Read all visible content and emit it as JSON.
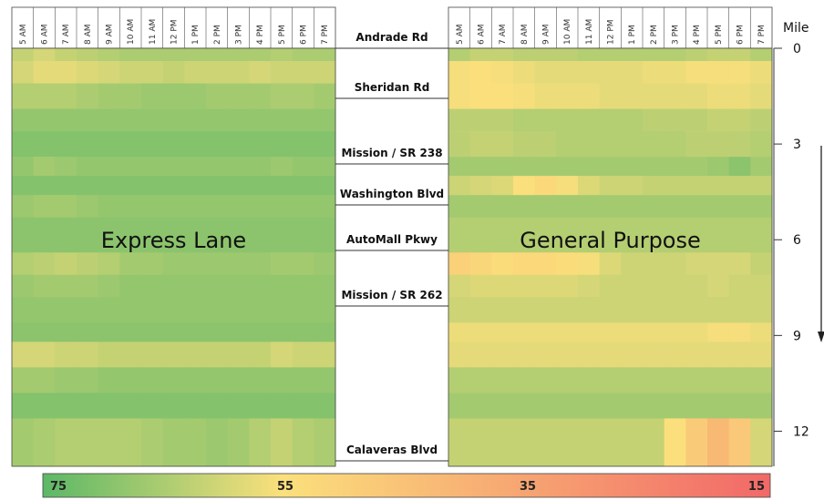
{
  "chart_data": {
    "type": "heatmap",
    "title": "",
    "time_labels": [
      "5 AM",
      "6 AM",
      "7 AM",
      "8 AM",
      "9 AM",
      "10 AM",
      "11 AM",
      "12 PM",
      "1 PM",
      "2 PM",
      "3 PM",
      "4 PM",
      "5 PM",
      "6 PM",
      "7 PM"
    ],
    "panels": [
      {
        "name": "Express Lane",
        "rows": [
          {
            "seg": [
              0.0,
              0.4
            ],
            "values": [
              62,
              60,
              62,
              63,
              64,
              65,
              65,
              65,
              65,
              65,
              65,
              65,
              64,
              65,
              65
            ]
          },
          {
            "seg": [
              0.4,
              1.1
            ],
            "values": [
              60,
              58,
              58,
              59,
              60,
              61,
              61,
              62,
              61,
              61,
              61,
              60,
              61,
              61,
              61
            ]
          },
          {
            "seg": [
              1.1,
              1.9
            ],
            "values": [
              64,
              64,
              64,
              65,
              66,
              66,
              67,
              67,
              67,
              66,
              66,
              66,
              65,
              65,
              66
            ]
          },
          {
            "seg": [
              1.9,
              2.6
            ],
            "values": [
              68,
              68,
              68,
              68,
              68,
              68,
              68,
              68,
              68,
              68,
              68,
              68,
              68,
              68,
              68
            ]
          },
          {
            "seg": [
              2.6,
              3.4
            ],
            "values": [
              70,
              70,
              70,
              70,
              70,
              70,
              70,
              70,
              70,
              70,
              70,
              70,
              70,
              70,
              70
            ]
          },
          {
            "seg": [
              3.4,
              4.0
            ],
            "values": [
              68,
              66,
              67,
              68,
              68,
              68,
              68,
              68,
              68,
              68,
              68,
              68,
              67,
              68,
              68
            ]
          },
          {
            "seg": [
              4.0,
              4.6
            ],
            "values": [
              70,
              70,
              70,
              70,
              70,
              70,
              70,
              70,
              70,
              70,
              70,
              70,
              70,
              70,
              70
            ]
          },
          {
            "seg": [
              4.6,
              5.3
            ],
            "values": [
              67,
              66,
              66,
              67,
              68,
              68,
              68,
              68,
              68,
              68,
              68,
              68,
              68,
              68,
              68
            ]
          },
          {
            "seg": [
              5.3,
              6.4
            ],
            "values": [
              69,
              69,
              69,
              69,
              69,
              69,
              69,
              69,
              69,
              69,
              69,
              69,
              69,
              69,
              69
            ]
          },
          {
            "seg": [
              6.4,
              7.1
            ],
            "values": [
              64,
              63,
              62,
              63,
              64,
              66,
              66,
              67,
              67,
              67,
              67,
              67,
              66,
              66,
              67
            ]
          },
          {
            "seg": [
              7.1,
              7.8
            ],
            "values": [
              67,
              66,
              66,
              66,
              67,
              68,
              68,
              68,
              68,
              68,
              68,
              68,
              68,
              68,
              68
            ]
          },
          {
            "seg": [
              7.8,
              8.6
            ],
            "values": [
              68,
              68,
              68,
              68,
              68,
              68,
              68,
              68,
              68,
              68,
              68,
              68,
              68,
              68,
              68
            ]
          },
          {
            "seg": [
              8.6,
              9.2
            ],
            "values": [
              69,
              69,
              69,
              69,
              69,
              69,
              69,
              69,
              69,
              69,
              69,
              69,
              69,
              69,
              69
            ]
          },
          {
            "seg": [
              9.2,
              10.0
            ],
            "values": [
              60,
              60,
              61,
              61,
              62,
              62,
              62,
              62,
              62,
              62,
              62,
              62,
              60,
              61,
              61
            ]
          },
          {
            "seg": [
              10.0,
              10.8
            ],
            "values": [
              66,
              66,
              67,
              67,
              68,
              68,
              68,
              68,
              68,
              68,
              68,
              68,
              68,
              68,
              68
            ]
          },
          {
            "seg": [
              10.8,
              11.6
            ],
            "values": [
              70,
              70,
              70,
              70,
              70,
              70,
              70,
              70,
              70,
              70,
              70,
              70,
              70,
              70,
              70
            ]
          },
          {
            "seg": [
              11.6,
              13.1
            ],
            "values": [
              66,
              65,
              64,
              64,
              64,
              64,
              65,
              66,
              66,
              67,
              66,
              64,
              62,
              64,
              65
            ]
          }
        ]
      },
      {
        "name": "General Purpose",
        "rows": [
          {
            "seg": [
              0.0,
              0.4
            ],
            "values": [
              64,
              62,
              62,
              63,
              63,
              63,
              64,
              64,
              64,
              64,
              64,
              63,
              62,
              62,
              64
            ]
          },
          {
            "seg": [
              0.4,
              1.1
            ],
            "values": [
              56,
              55,
              56,
              57,
              58,
              58,
              58,
              58,
              58,
              57,
              57,
              56,
              56,
              56,
              57
            ]
          },
          {
            "seg": [
              1.1,
              1.9
            ],
            "values": [
              56,
              55,
              55,
              56,
              57,
              57,
              57,
              58,
              58,
              58,
              58,
              58,
              57,
              57,
              58
            ]
          },
          {
            "seg": [
              1.9,
              2.6
            ],
            "values": [
              63,
              63,
              63,
              64,
              64,
              64,
              64,
              64,
              64,
              63,
              63,
              63,
              62,
              62,
              63
            ]
          },
          {
            "seg": [
              2.6,
              3.4
            ],
            "values": [
              63,
              62,
              62,
              63,
              63,
              64,
              64,
              64,
              64,
              64,
              64,
              63,
              63,
              63,
              64
            ]
          },
          {
            "seg": [
              3.4,
              4.0
            ],
            "values": [
              66,
              66,
              66,
              66,
              66,
              66,
              66,
              66,
              66,
              66,
              66,
              66,
              67,
              69,
              66
            ]
          },
          {
            "seg": [
              4.0,
              4.6
            ],
            "values": [
              61,
              60,
              59,
              55,
              53,
              56,
              59,
              61,
              61,
              62,
              62,
              62,
              62,
              62,
              62
            ]
          },
          {
            "seg": [
              4.6,
              5.3
            ],
            "values": [
              66,
              66,
              66,
              66,
              66,
              66,
              66,
              66,
              66,
              66,
              66,
              66,
              66,
              66,
              66
            ]
          },
          {
            "seg": [
              5.3,
              6.4
            ],
            "values": [
              64,
              64,
              64,
              64,
              64,
              64,
              64,
              64,
              64,
              64,
              64,
              64,
              64,
              64,
              64
            ]
          },
          {
            "seg": [
              6.4,
              7.1
            ],
            "values": [
              50,
              52,
              54,
              53,
              53,
              54,
              56,
              59,
              61,
              61,
              61,
              60,
              60,
              60,
              62
            ]
          },
          {
            "seg": [
              7.1,
              7.8
            ],
            "values": [
              60,
              59,
              59,
              59,
              59,
              59,
              60,
              61,
              61,
              61,
              61,
              61,
              60,
              61,
              61
            ]
          },
          {
            "seg": [
              7.8,
              8.6
            ],
            "values": [
              61,
              61,
              61,
              61,
              61,
              61,
              61,
              61,
              61,
              61,
              61,
              61,
              61,
              61,
              61
            ]
          },
          {
            "seg": [
              8.6,
              9.2
            ],
            "values": [
              57,
              57,
              57,
              57,
              57,
              57,
              57,
              57,
              57,
              57,
              57,
              57,
              56,
              56,
              57
            ]
          },
          {
            "seg": [
              9.2,
              10.0
            ],
            "values": [
              58,
              58,
              58,
              58,
              58,
              58,
              58,
              58,
              58,
              58,
              58,
              58,
              58,
              58,
              58
            ]
          },
          {
            "seg": [
              10.0,
              10.8
            ],
            "values": [
              64,
              64,
              64,
              64,
              64,
              64,
              64,
              64,
              64,
              64,
              64,
              64,
              64,
              64,
              64
            ]
          },
          {
            "seg": [
              10.8,
              11.6
            ],
            "values": [
              66,
              66,
              66,
              66,
              66,
              66,
              66,
              66,
              66,
              66,
              66,
              66,
              66,
              66,
              66
            ]
          },
          {
            "seg": [
              11.6,
              13.1
            ],
            "values": [
              62,
              62,
              62,
              62,
              62,
              62,
              62,
              62,
              62,
              62,
              55,
              48,
              42,
              47,
              60
            ]
          }
        ]
      }
    ],
    "y_axis": {
      "label": "Mile",
      "ticks": [
        0,
        3,
        6,
        9,
        12
      ],
      "range": [
        0,
        13.1
      ]
    },
    "roads": [
      {
        "name": "Andrade Rd",
        "mile": 0.0
      },
      {
        "name": "Sheridan Rd",
        "mile": 1.9
      },
      {
        "name": "Mission / SR 238",
        "mile": 4.6
      },
      {
        "name": "Washington Blvd",
        "mile": 6.3
      },
      {
        "name": "AutoMall Pkwy",
        "mile": 8.1
      },
      {
        "name": "Mission / SR 262",
        "mile": 10.9
      },
      {
        "name": "Calaveras Blvd",
        "mile": 16.5
      }
    ],
    "colorbar": {
      "ticks": [
        "75",
        "55",
        "35",
        "15"
      ],
      "range": [
        75,
        15
      ]
    },
    "colors": {
      "high": "#5cb866",
      "mid": "#fbe07c",
      "low": "#f26868"
    }
  }
}
